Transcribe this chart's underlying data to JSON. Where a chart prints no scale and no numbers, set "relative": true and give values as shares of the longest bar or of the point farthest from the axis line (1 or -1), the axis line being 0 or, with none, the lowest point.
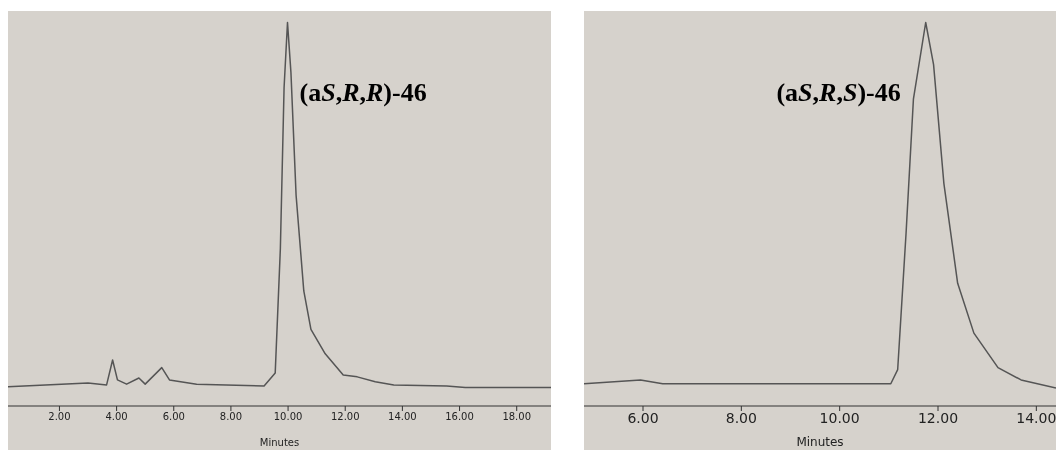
{
  "chart_data": [
    {
      "type": "line",
      "relative": true,
      "xlabel": "Minutes",
      "xlim": [
        0.2,
        19.2
      ],
      "xticks": [
        {
          "value": 2,
          "label": "2.00"
        },
        {
          "value": 4,
          "label": "4.00"
        },
        {
          "value": 6,
          "label": "6.00"
        },
        {
          "value": 8,
          "label": "8.00"
        },
        {
          "value": 10,
          "label": "10.00"
        },
        {
          "value": 12,
          "label": "12.00"
        },
        {
          "value": 14,
          "label": "14.00"
        },
        {
          "value": 16,
          "label": "16.00"
        },
        {
          "value": 18,
          "label": "18.00"
        }
      ],
      "tick_labels": "x",
      "annotations": [
        "(aS,R,R)-46"
      ],
      "series": [
        {
          "color": "#555555",
          "x": [
            0.2,
            3.0,
            3.65,
            3.86,
            4.03,
            4.35,
            4.78,
            5.0,
            5.58,
            5.85,
            6.8,
            9.16,
            9.55,
            9.73,
            9.86,
            9.98,
            10.1,
            10.28,
            10.55,
            10.8,
            11.3,
            11.93,
            12.42,
            13.05,
            13.7,
            15.55,
            16.2,
            19.2
          ],
          "values": [
            0.05,
            0.06,
            0.055,
            0.12,
            0.068,
            0.057,
            0.073,
            0.057,
            0.1,
            0.068,
            0.057,
            0.052,
            0.086,
            0.41,
            0.83,
            1.0,
            0.87,
            0.55,
            0.3,
            0.2,
            0.136,
            0.081,
            0.076,
            0.063,
            0.055,
            0.052,
            0.048,
            0.048
          ]
        }
      ]
    },
    {
      "type": "line",
      "relative": true,
      "xlabel": "Minutes",
      "xlim": [
        4.8,
        14.4
      ],
      "xticks": [
        {
          "value": 6,
          "label": "6.00"
        },
        {
          "value": 8,
          "label": "8.00"
        },
        {
          "value": 10,
          "label": "10.00"
        },
        {
          "value": 12,
          "label": "12.00"
        },
        {
          "value": 14,
          "label": "14.00"
        }
      ],
      "tick_labels": "x",
      "annotations": [
        "(aS,R,S)-46"
      ],
      "series": [
        {
          "color": "#555555",
          "x": [
            4.8,
            5.95,
            6.4,
            11.04,
            11.18,
            11.35,
            11.5,
            11.75,
            11.91,
            12.12,
            12.4,
            12.73,
            13.22,
            13.69,
            14.4
          ],
          "values": [
            0.058,
            0.068,
            0.058,
            0.058,
            0.095,
            0.45,
            0.8,
            1.0,
            0.89,
            0.58,
            0.32,
            0.19,
            0.1,
            0.068,
            0.047
          ]
        }
      ]
    }
  ]
}
